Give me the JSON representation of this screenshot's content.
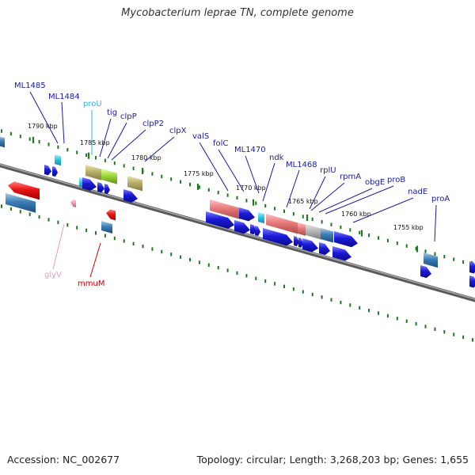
{
  "header": {
    "title": "Mycobacterium leprae TN, complete genome"
  },
  "footer": {
    "accession": "Accession: NC_002677",
    "summary": "Topology: circular; Length: 3,268,203 bp; Genes: 1,655"
  },
  "colors": {
    "label_default": "#1a1aa8",
    "label_proU": "#33b6dd",
    "label_glyV": "#ee99bb",
    "label_mmuM": "#cc0000",
    "backbone": "#777777",
    "tick": "#1f7a1f",
    "cds_blue": "#1a1ad8",
    "cds_red": "#e81414",
    "cds_salmon": "#e87a7a",
    "cds_olive": "#b9b06a",
    "cds_lime": "#9ed83a",
    "cds_cyan": "#30c6e0",
    "cds_steel": "#3a7eb6",
    "cds_gray": "#b5b5b5",
    "cds_pink": "#ee99bb"
  },
  "scale_labels": [
    "1790 kbp",
    "1785 kbp",
    "1780 kbp",
    "1775 kbp",
    "1770 kbp",
    "1765 kbp",
    "1760 kbp",
    "1755 kbp"
  ],
  "genes": [
    {
      "id": "ML1485",
      "label": "ML1485",
      "color": "label_default"
    },
    {
      "id": "ML1484",
      "label": "ML1484",
      "color": "label_default"
    },
    {
      "id": "proU",
      "label": "proU",
      "color": "label_proU"
    },
    {
      "id": "tig",
      "label": "tig",
      "color": "label_default"
    },
    {
      "id": "clpP",
      "label": "clpP",
      "color": "label_default"
    },
    {
      "id": "clpP2",
      "label": "clpP2",
      "color": "label_default"
    },
    {
      "id": "clpX",
      "label": "clpX",
      "color": "label_default"
    },
    {
      "id": "valS",
      "label": "valS",
      "color": "label_default"
    },
    {
      "id": "folC",
      "label": "folC",
      "color": "label_default"
    },
    {
      "id": "ML1470",
      "label": "ML1470",
      "color": "label_default"
    },
    {
      "id": "ndk",
      "label": "ndk",
      "color": "label_default"
    },
    {
      "id": "ML1468",
      "label": "ML1468",
      "color": "label_default"
    },
    {
      "id": "rplU",
      "label": "rplU",
      "color": "label_default"
    },
    {
      "id": "rpmA",
      "label": "rpmA",
      "color": "label_default"
    },
    {
      "id": "obgE",
      "label": "obgE",
      "color": "label_default"
    },
    {
      "id": "proB",
      "label": "proB",
      "color": "label_default"
    },
    {
      "id": "nadE",
      "label": "nadE",
      "color": "label_default"
    },
    {
      "id": "proA",
      "label": "proA",
      "color": "label_default"
    },
    {
      "id": "glyV",
      "label": "glyV",
      "color": "label_glyV"
    },
    {
      "id": "mmuM",
      "label": "mmuM",
      "color": "label_mmuM"
    }
  ]
}
